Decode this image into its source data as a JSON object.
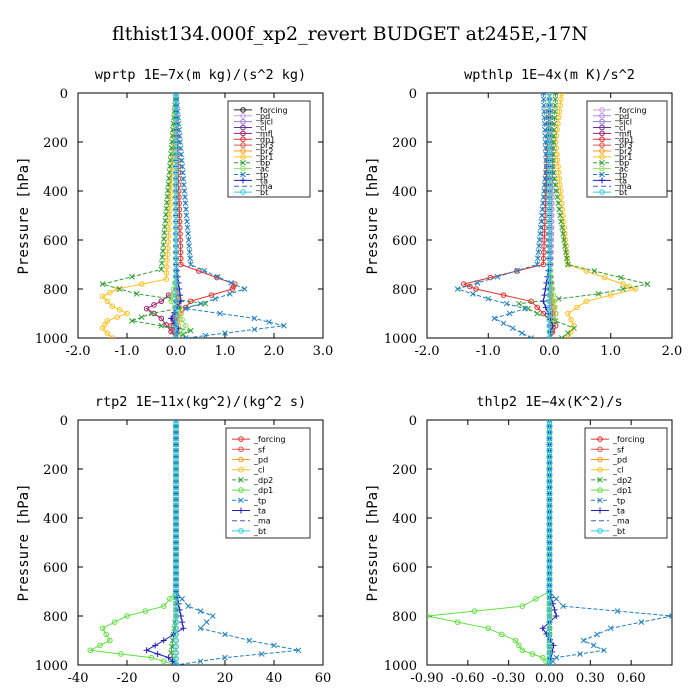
{
  "figure": {
    "title": "flthist134.000f_xp2_revert  BUDGET at245E,-17N"
  },
  "chart_data": [
    {
      "type": "line",
      "title": "wprtp  1E−7x(m kg)/(s^2 kg)",
      "ylabel": "Pressure [hPa]",
      "xlim": [
        -2.0,
        3.0
      ],
      "ylim": [
        1000,
        0
      ],
      "xticks": [
        "-2.0",
        "-1.0",
        "0.0",
        "1.0",
        "2.0",
        "3.0"
      ],
      "yticks": [
        "0",
        "200",
        "400",
        "600",
        "800",
        "1000"
      ],
      "legend_position": "upper-right",
      "grid": false,
      "series": [
        {
          "name": "_forcing",
          "color": "#222222",
          "marker": "o",
          "x": [
            0,
            0,
            0,
            0,
            0,
            0
          ],
          "y": [
            0,
            200,
            400,
            600,
            800,
            1000
          ]
        },
        {
          "name": "_pd",
          "color": "#c9a0dc",
          "marker": "o",
          "x": [
            0,
            0,
            0,
            0
          ],
          "y": [
            0,
            300,
            600,
            1000
          ]
        },
        {
          "name": "_sicl",
          "color": "#9b7fd4",
          "marker": "o",
          "x": [
            0,
            0,
            0,
            0
          ],
          "y": [
            0,
            300,
            600,
            1000
          ]
        },
        {
          "name": "_cl",
          "color": "#6a2ea0",
          "marker": "o",
          "x": [
            0,
            0,
            0.02,
            -0.05,
            0
          ],
          "y": [
            0,
            600,
            850,
            950,
            1000
          ]
        },
        {
          "name": "_mfl",
          "color": "#a0206a",
          "marker": "o",
          "x": [
            0,
            0,
            -0.3,
            -0.6,
            -0.3,
            0
          ],
          "y": [
            0,
            800,
            850,
            880,
            920,
            1000
          ]
        },
        {
          "name": "_dp1",
          "color": "#e03030",
          "marker": "o",
          "x": [
            0,
            0.1,
            1.2,
            1.15,
            0.3,
            -0.1,
            0
          ],
          "y": [
            0,
            700,
            780,
            800,
            850,
            950,
            1000
          ]
        },
        {
          "name": "_pr3",
          "color": "#e05050",
          "marker": "o",
          "x": [
            0,
            0,
            0.05,
            -0.1,
            0
          ],
          "y": [
            0,
            750,
            850,
            950,
            1000
          ]
        },
        {
          "name": "_pr2",
          "color": "#f0a020",
          "marker": "o",
          "x": [
            0,
            0,
            0.1,
            0
          ],
          "y": [
            0,
            800,
            900,
            1000
          ]
        },
        {
          "name": "_pr1",
          "color": "#ffc020",
          "marker": "o",
          "x": [
            0,
            -0.2,
            -1.2,
            -1.5,
            -1.3,
            -1.0,
            -1.4,
            -1.5,
            -1.3
          ],
          "y": [
            0,
            760,
            800,
            830,
            870,
            900,
            930,
            960,
            1000
          ]
        },
        {
          "name": "_bp",
          "color": "#30a030",
          "marker": "x",
          "x": [
            0,
            -0.3,
            -1.5,
            -0.8,
            0.6,
            -0.5,
            -0.9,
            0.3,
            0.0
          ],
          "y": [
            0,
            720,
            780,
            820,
            860,
            900,
            930,
            970,
            1000
          ]
        },
        {
          "name": "_ac",
          "color": "#90e060",
          "marker": "o",
          "x": [
            0,
            0,
            -0.1,
            0.2,
            0
          ],
          "y": [
            0,
            750,
            850,
            950,
            1000
          ]
        },
        {
          "name": "_tp",
          "color": "#2080c0",
          "marker": "x",
          "x": [
            0,
            0.3,
            1.4,
            0.8,
            0.2,
            1.6,
            2.2,
            1.0,
            0.2
          ],
          "y": [
            0,
            700,
            800,
            840,
            880,
            920,
            950,
            980,
            1000
          ]
        },
        {
          "name": "_ta",
          "color": "#2020c0",
          "marker": "+",
          "x": [
            0,
            0,
            0.1,
            -0.1,
            0.05,
            0
          ],
          "y": [
            0,
            700,
            850,
            920,
            960,
            1000
          ]
        },
        {
          "name": "_ma",
          "color": "#4060d0",
          "marker": "-",
          "x": [
            0,
            0,
            0
          ],
          "y": [
            0,
            500,
            1000
          ]
        },
        {
          "name": "_bt",
          "color": "#30d0e0",
          "marker": "o",
          "x": [
            0,
            0,
            0
          ],
          "y": [
            0,
            500,
            1000
          ]
        }
      ]
    },
    {
      "type": "line",
      "title": "wpthlp  1E−4x(m K)/s^2",
      "ylabel": "Pressure [hPa]",
      "xlim": [
        -2.0,
        2.0
      ],
      "ylim": [
        1000,
        0
      ],
      "xticks": [
        "-2.0",
        "-1.0",
        "0.0",
        "1.0",
        "2.0"
      ],
      "yticks": [
        "0",
        "200",
        "400",
        "600",
        "800",
        "1000"
      ],
      "legend_position": "upper-right",
      "grid": false,
      "series": [
        {
          "name": "_forcing",
          "color": "#c9a0dc",
          "marker": "o",
          "x": [
            0,
            0,
            0
          ],
          "y": [
            0,
            500,
            1000
          ]
        },
        {
          "name": "_pd",
          "color": "#b090e0",
          "marker": "o",
          "x": [
            0,
            0,
            0,
            0
          ],
          "y": [
            0,
            300,
            700,
            1000
          ]
        },
        {
          "name": "_sicl",
          "color": "#9b7fd4",
          "marker": "o",
          "x": [
            0,
            0.05,
            0.02,
            0
          ],
          "y": [
            0,
            300,
            700,
            1000
          ]
        },
        {
          "name": "_cl",
          "color": "#6a2ea0",
          "marker": "o",
          "x": [
            0,
            0,
            0.05,
            0
          ],
          "y": [
            0,
            700,
            900,
            1000
          ]
        },
        {
          "name": "_mfl",
          "color": "#a0206a",
          "marker": "o",
          "x": [
            0,
            0,
            0.1,
            0.05,
            0
          ],
          "y": [
            0,
            800,
            900,
            960,
            1000
          ]
        },
        {
          "name": "_dp1",
          "color": "#e03030",
          "marker": "o",
          "x": [
            0,
            -0.1,
            -1.4,
            -1.2,
            -0.3,
            0.1,
            0
          ],
          "y": [
            0,
            700,
            780,
            800,
            850,
            950,
            1000
          ]
        },
        {
          "name": "_pr3",
          "color": "#e05050",
          "marker": "o",
          "x": [
            0,
            0,
            0.05,
            0
          ],
          "y": [
            0,
            750,
            900,
            1000
          ]
        },
        {
          "name": "_pr2",
          "color": "#f0a020",
          "marker": "o",
          "x": [
            0,
            0,
            0.1,
            0
          ],
          "y": [
            0,
            800,
            900,
            1000
          ]
        },
        {
          "name": "_pr1",
          "color": "#ffc020",
          "marker": "o",
          "x": [
            0.2,
            0.1,
            0.3,
            1.2,
            1.4,
            0.6,
            0.3,
            0.4,
            0.3
          ],
          "y": [
            0,
            200,
            700,
            780,
            800,
            850,
            900,
            950,
            1000
          ]
        },
        {
          "name": "_bp",
          "color": "#30a030",
          "marker": "x",
          "x": [
            0.1,
            0.05,
            0.3,
            1.6,
            0.8,
            -0.5,
            -0.2,
            0.4,
            0.2
          ],
          "y": [
            0,
            300,
            700,
            780,
            820,
            860,
            900,
            960,
            1000
          ]
        },
        {
          "name": "_ac",
          "color": "#90e060",
          "marker": "o",
          "x": [
            0,
            0,
            0.1,
            0
          ],
          "y": [
            0,
            700,
            900,
            1000
          ]
        },
        {
          "name": "_tp",
          "color": "#2080c0",
          "marker": "x",
          "x": [
            -0.1,
            -0.05,
            -0.2,
            -1.5,
            -1.0,
            -0.4,
            -0.9,
            -0.6,
            -0.3
          ],
          "y": [
            0,
            300,
            700,
            800,
            840,
            880,
            920,
            960,
            1000
          ]
        },
        {
          "name": "_ta",
          "color": "#2020c0",
          "marker": "+",
          "x": [
            0,
            0,
            -0.1,
            0.05,
            0
          ],
          "y": [
            0,
            700,
            850,
            950,
            1000
          ]
        },
        {
          "name": "_ma",
          "color": "#4060d0",
          "marker": "-",
          "x": [
            0,
            0,
            0
          ],
          "y": [
            0,
            500,
            1000
          ]
        },
        {
          "name": "_bt",
          "color": "#30d0e0",
          "marker": "o",
          "x": [
            0,
            0,
            0
          ],
          "y": [
            0,
            500,
            1000
          ]
        }
      ]
    },
    {
      "type": "line",
      "title": "rtp2  1E−11x(kg^2)/(kg^2 s)",
      "ylabel": "Pressure [hPa]",
      "xlim": [
        -40,
        60
      ],
      "ylim": [
        1000,
        0
      ],
      "xticks": [
        "-40",
        "-20",
        "0",
        "20",
        "40",
        "60"
      ],
      "yticks": [
        "0",
        "200",
        "400",
        "600",
        "800",
        "1000"
      ],
      "legend_position": "upper-right",
      "grid": false,
      "series": [
        {
          "name": "_forcing",
          "color": "#e03030",
          "marker": "o",
          "x": [
            0,
            0,
            0
          ],
          "y": [
            0,
            500,
            1000
          ]
        },
        {
          "name": "_sf",
          "color": "#e05050",
          "marker": "o",
          "x": [
            0,
            0,
            0
          ],
          "y": [
            0,
            500,
            1000
          ]
        },
        {
          "name": "_pd",
          "color": "#f0a020",
          "marker": "o",
          "x": [
            0,
            0,
            0
          ],
          "y": [
            0,
            500,
            1000
          ]
        },
        {
          "name": "_cl",
          "color": "#ffc020",
          "marker": "o",
          "x": [
            0,
            0,
            0
          ],
          "y": [
            0,
            500,
            1000
          ]
        },
        {
          "name": "_dp2",
          "color": "#30a030",
          "marker": "x",
          "x": [
            0,
            0,
            -2,
            0
          ],
          "y": [
            0,
            800,
            950,
            1000
          ]
        },
        {
          "name": "_dp1",
          "color": "#60e040",
          "marker": "o",
          "x": [
            0,
            0,
            -5,
            -20,
            -30,
            -27,
            -35,
            -10,
            0
          ],
          "y": [
            0,
            700,
            760,
            800,
            850,
            900,
            940,
            970,
            1000
          ]
        },
        {
          "name": "_tp",
          "color": "#2080c0",
          "marker": "x",
          "x": [
            0,
            0,
            5,
            15,
            10,
            30,
            50,
            20,
            0
          ],
          "y": [
            0,
            700,
            760,
            800,
            850,
            900,
            940,
            970,
            1000
          ]
        },
        {
          "name": "_ta",
          "color": "#2020c0",
          "marker": "+",
          "x": [
            0,
            0,
            2,
            3,
            -5,
            -12,
            -3,
            0
          ],
          "y": [
            0,
            700,
            800,
            850,
            900,
            940,
            970,
            1000
          ]
        },
        {
          "name": "_ma",
          "color": "#4060d0",
          "marker": "-",
          "x": [
            0,
            0,
            0
          ],
          "y": [
            0,
            500,
            1000
          ]
        },
        {
          "name": "_bt",
          "color": "#30d0e0",
          "marker": "o",
          "x": [
            0,
            0,
            0
          ],
          "y": [
            0,
            500,
            1000
          ]
        }
      ]
    },
    {
      "type": "line",
      "title": "thlp2  1E−4x(K^2)/s",
      "ylabel": "Pressure [hPa]",
      "xlim": [
        -0.9,
        0.9
      ],
      "ylim": [
        1000,
        0
      ],
      "xticks": [
        "-0.90",
        "-0.60",
        "-0.30",
        "0.00",
        "0.30",
        "0.60"
      ],
      "yticks": [
        "0",
        "200",
        "400",
        "600",
        "800",
        "1000"
      ],
      "legend_position": "upper-right",
      "grid": false,
      "series": [
        {
          "name": "_forcing",
          "color": "#e03030",
          "marker": "o",
          "x": [
            0,
            0,
            0
          ],
          "y": [
            0,
            500,
            1000
          ]
        },
        {
          "name": "_sf",
          "color": "#e05050",
          "marker": "o",
          "x": [
            0,
            0,
            0
          ],
          "y": [
            0,
            500,
            1000
          ]
        },
        {
          "name": "_pd",
          "color": "#f0a020",
          "marker": "o",
          "x": [
            0,
            0,
            0
          ],
          "y": [
            0,
            500,
            1000
          ]
        },
        {
          "name": "_cl",
          "color": "#ffc020",
          "marker": "o",
          "x": [
            0,
            0,
            0
          ],
          "y": [
            0,
            500,
            1000
          ]
        },
        {
          "name": "_dp2",
          "color": "#30a030",
          "marker": "x",
          "x": [
            0,
            0,
            0
          ],
          "y": [
            0,
            500,
            1000
          ]
        },
        {
          "name": "_dp1",
          "color": "#60e040",
          "marker": "o",
          "x": [
            0,
            0,
            -0.2,
            -0.9,
            -0.45,
            -0.25,
            -0.2,
            -0.05,
            0
          ],
          "y": [
            0,
            700,
            760,
            800,
            850,
            900,
            940,
            970,
            1000
          ]
        },
        {
          "name": "_tp",
          "color": "#2080c0",
          "marker": "x",
          "x": [
            0,
            0,
            0.1,
            0.9,
            0.45,
            0.25,
            0.4,
            0.05,
            0
          ],
          "y": [
            0,
            700,
            760,
            800,
            850,
            900,
            940,
            970,
            1000
          ]
        },
        {
          "name": "_ta",
          "color": "#2020c0",
          "marker": "+",
          "x": [
            0,
            0,
            0.05,
            -0.05,
            0.03,
            0
          ],
          "y": [
            0,
            700,
            800,
            850,
            920,
            1000
          ]
        },
        {
          "name": "_ma",
          "color": "#4060d0",
          "marker": "-",
          "x": [
            0,
            0,
            0
          ],
          "y": [
            0,
            500,
            1000
          ]
        },
        {
          "name": "_bt",
          "color": "#30d0e0",
          "marker": "o",
          "x": [
            0,
            0,
            0
          ],
          "y": [
            0,
            500,
            1000
          ]
        }
      ]
    }
  ]
}
